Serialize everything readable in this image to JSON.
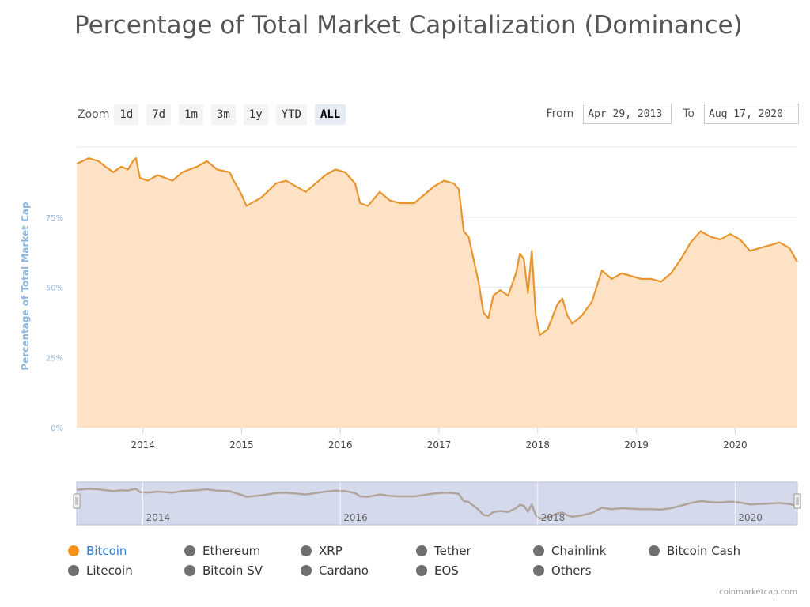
{
  "title": "Percentage of Total Market Capitalization (Dominance)",
  "zoom": {
    "label": "Zoom",
    "buttons": [
      "1d",
      "7d",
      "1m",
      "3m",
      "1y",
      "YTD",
      "ALL"
    ],
    "active": "ALL"
  },
  "range": {
    "from_label": "From",
    "from_value": "Apr 29, 2013",
    "to_label": "To",
    "to_value": "Aug 17, 2020"
  },
  "colors": {
    "bitcoin": "#f7931a",
    "bitcoin_line": "#e8952e",
    "bitcoin_fill": "#fde2c5",
    "inactive": "#707070",
    "axis_label": "#8fb8e0",
    "navigator_mask": "#d4d9ec",
    "navigator_line": "#b0a49c"
  },
  "chart_data": {
    "type": "area",
    "ylabel": "Percentage of Total Market Cap",
    "ylim": [
      0,
      100
    ],
    "y_ticks": [
      "0%",
      "25%",
      "50%",
      "75%"
    ],
    "x_ticks": [
      "2014",
      "2015",
      "2016",
      "2017",
      "2018",
      "2019",
      "2020"
    ],
    "navigator_ticks": [
      "2014",
      "2016",
      "2018",
      "2020"
    ],
    "grid": true,
    "series": [
      {
        "name": "Bitcoin",
        "x": [
          2013.33,
          2013.45,
          2013.55,
          2013.62,
          2013.7,
          2013.78,
          2013.85,
          2013.9,
          2013.93,
          2013.97,
          2014.05,
          2014.15,
          2014.3,
          2014.4,
          2014.55,
          2014.65,
          2014.75,
          2014.88,
          2014.92,
          2014.97,
          2015.0,
          2015.05,
          2015.2,
          2015.35,
          2015.45,
          2015.55,
          2015.65,
          2015.75,
          2015.85,
          2015.95,
          2016.05,
          2016.15,
          2016.2,
          2016.28,
          2016.4,
          2016.5,
          2016.6,
          2016.75,
          2016.85,
          2016.95,
          2017.05,
          2017.15,
          2017.2,
          2017.25,
          2017.3,
          2017.35,
          2017.4,
          2017.45,
          2017.5,
          2017.55,
          2017.62,
          2017.7,
          2017.78,
          2017.82,
          2017.86,
          2017.9,
          2017.94,
          2017.98,
          2018.02,
          2018.1,
          2018.2,
          2018.25,
          2018.3,
          2018.35,
          2018.45,
          2018.55,
          2018.65,
          2018.75,
          2018.85,
          2018.95,
          2019.05,
          2019.15,
          2019.25,
          2019.35,
          2019.45,
          2019.55,
          2019.65,
          2019.75,
          2019.85,
          2019.95,
          2020.05,
          2020.15,
          2020.25,
          2020.35,
          2020.45,
          2020.55,
          2020.63
        ],
        "values": [
          94,
          96,
          95,
          93,
          91,
          93,
          92,
          95,
          96,
          89,
          88,
          90,
          88,
          91,
          93,
          95,
          92,
          91,
          88,
          85,
          83,
          79,
          82,
          87,
          88,
          86,
          84,
          87,
          90,
          92,
          91,
          87,
          80,
          79,
          84,
          81,
          80,
          80,
          83,
          86,
          88,
          87,
          85,
          70,
          68,
          60,
          52,
          41,
          39,
          47,
          49,
          47,
          55,
          62,
          60,
          48,
          63,
          40,
          33,
          35,
          44,
          46,
          40,
          37,
          40,
          45,
          56,
          53,
          55,
          54,
          53,
          53,
          52,
          55,
          60,
          66,
          70,
          68,
          67,
          69,
          67,
          63,
          64,
          65,
          66,
          64,
          59
        ]
      }
    ]
  },
  "legend": [
    {
      "name": "Bitcoin",
      "active": true
    },
    {
      "name": "Ethereum",
      "active": false
    },
    {
      "name": "XRP",
      "active": false
    },
    {
      "name": "Tether",
      "active": false
    },
    {
      "name": "Chainlink",
      "active": false
    },
    {
      "name": "Bitcoin Cash",
      "active": false
    },
    {
      "name": "Litecoin",
      "active": false
    },
    {
      "name": "Bitcoin SV",
      "active": false
    },
    {
      "name": "Cardano",
      "active": false
    },
    {
      "name": "EOS",
      "active": false
    },
    {
      "name": "Others",
      "active": false
    }
  ],
  "credit": "coinmarketcap.com"
}
